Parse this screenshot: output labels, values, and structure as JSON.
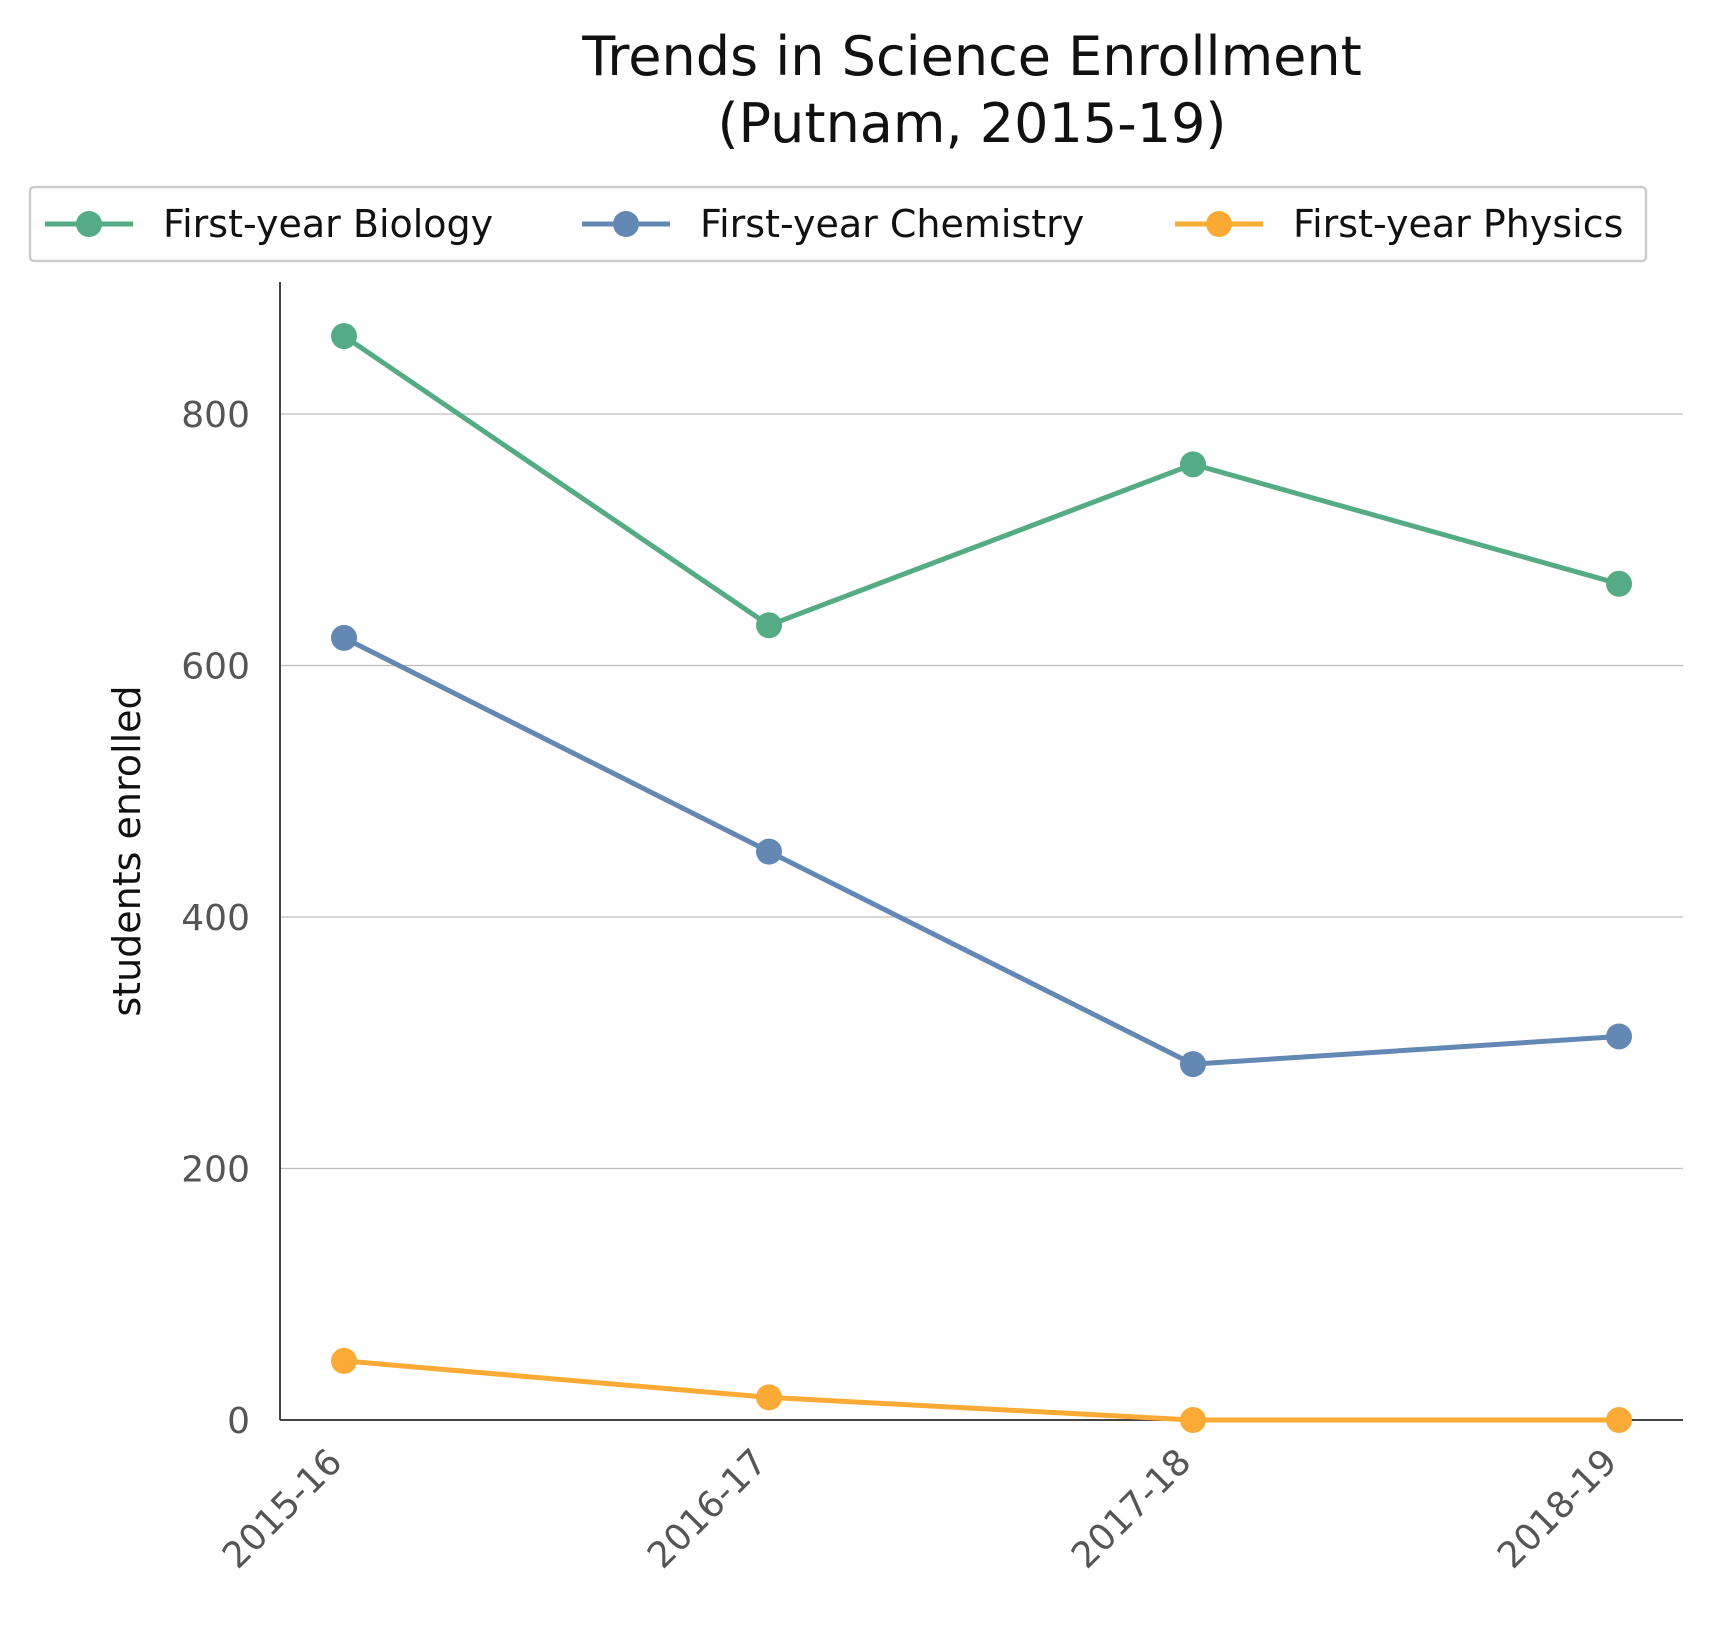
{
  "chart_data": {
    "type": "line",
    "title": [
      "Trends in Science Enrollment",
      "(Putnam, 2015-19)"
    ],
    "xlabel": "",
    "ylabel": "students enrolled",
    "categories": [
      "2015-16",
      "2016-17",
      "2017-18",
      "2018-19"
    ],
    "yticks": [
      0,
      200,
      400,
      600,
      800
    ],
    "ylim": [
      0,
      905
    ],
    "grid": "horizontal",
    "legend_position": "top",
    "series": [
      {
        "name": "First-year Biology",
        "color": "#55ab84",
        "values": [
          862,
          632,
          760,
          665
        ]
      },
      {
        "name": "First-year Chemistry",
        "color": "#6388b4",
        "values": [
          622,
          452,
          283,
          305
        ]
      },
      {
        "name": "First-year Physics",
        "color": "#fbaa35",
        "values": [
          47,
          18,
          0,
          0
        ]
      }
    ]
  }
}
